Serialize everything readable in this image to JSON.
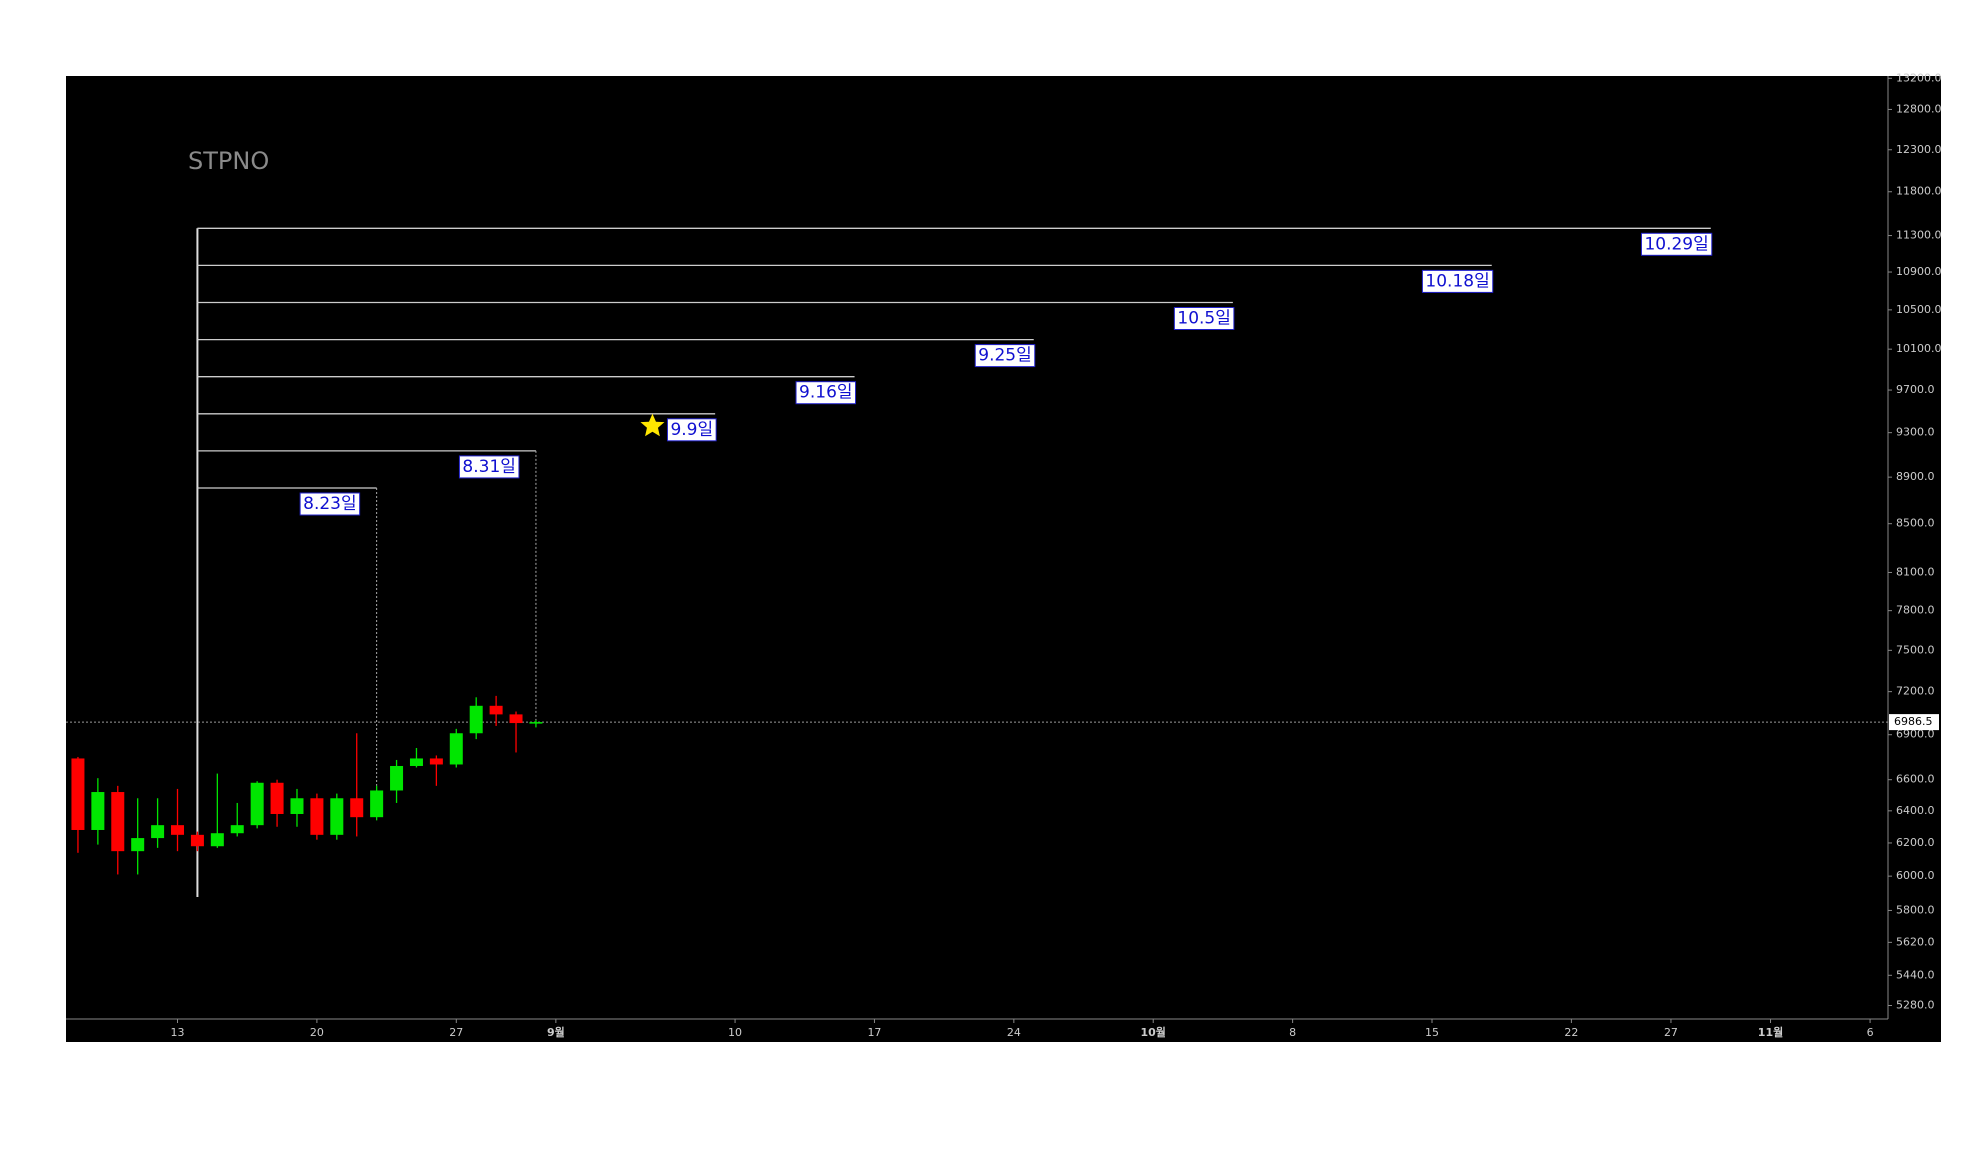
{
  "chart_data": {
    "type": "candlestick",
    "title": "STPNO",
    "log_scale": true,
    "x": [
      -5,
      -4,
      -3,
      -2,
      -1,
      0,
      1,
      2,
      3,
      4,
      5,
      6,
      7,
      8,
      9,
      10,
      11,
      12,
      13,
      14,
      15,
      16,
      17,
      18
    ],
    "open": [
      6740,
      6280,
      6520,
      6150,
      6230,
      6310,
      6250,
      6180,
      6260,
      6310,
      6580,
      6380,
      6480,
      6250,
      6480,
      6360,
      6530,
      6690,
      6740,
      6700,
      6910,
      7100,
      7040,
      6980
    ],
    "high": [
      6750,
      6610,
      6560,
      6480,
      6480,
      6540,
      6270,
      6640,
      6450,
      6590,
      6600,
      6540,
      6510,
      6510,
      6910,
      6560,
      6730,
      6810,
      6760,
      6940,
      7160,
      7170,
      7060,
      7000
    ],
    "low": [
      6140,
      6190,
      6010,
      6010,
      6170,
      6150,
      6150,
      6170,
      6240,
      6290,
      6300,
      6300,
      6220,
      6220,
      6240,
      6340,
      6450,
      6680,
      6560,
      6680,
      6870,
      6960,
      6780,
      6950
    ],
    "close": [
      6280,
      6520,
      6150,
      6230,
      6310,
      6250,
      6180,
      6260,
      6310,
      6580,
      6380,
      6480,
      6250,
      6480,
      6360,
      6530,
      6690,
      6740,
      6700,
      6910,
      7100,
      7040,
      6980,
      6986.5
    ],
    "up_color": "#00e600",
    "down_color": "#ff0000",
    "last_price": 6986.5,
    "annotation_start": 1,
    "annotations": [
      {
        "label": "8.23일",
        "x": 10
      },
      {
        "label": "8.31일",
        "x": 18
      },
      {
        "label": "9.9일",
        "x": 27
      },
      {
        "label": "9.16일",
        "x": 34
      },
      {
        "label": "9.25일",
        "x": 43
      },
      {
        "label": "10.5일",
        "x": 53
      },
      {
        "label": "10.18일",
        "x": 66
      },
      {
        "label": "10.29일",
        "x": 77
      }
    ],
    "xlim": [
      -5.6,
      85.9
    ],
    "xticks": [
      {
        "value": 0,
        "label": "13"
      },
      {
        "value": 7,
        "label": "20"
      },
      {
        "value": 14,
        "label": "27"
      },
      {
        "value": 19,
        "label": "9월"
      },
      {
        "value": 28,
        "label": "10"
      },
      {
        "value": 35,
        "label": "17"
      },
      {
        "value": 42,
        "label": "24"
      },
      {
        "value": 49,
        "label": "10월"
      },
      {
        "value": 56,
        "label": "8"
      },
      {
        "value": 63,
        "label": "15"
      },
      {
        "value": 70,
        "label": "22"
      },
      {
        "value": 75,
        "label": "27"
      },
      {
        "value": 80,
        "label": "11월"
      },
      {
        "value": 85,
        "label": "6"
      }
    ],
    "ylim": [
      5210,
      13230
    ],
    "yticks": [
      {
        "value": 13200,
        "label": "13200.0"
      },
      {
        "value": 12800,
        "label": "12800.0"
      },
      {
        "value": 12300,
        "label": "12300.0"
      },
      {
        "value": 11800,
        "label": "11800.0"
      },
      {
        "value": 11300,
        "label": "11300.0"
      },
      {
        "value": 10900,
        "label": "10900.0"
      },
      {
        "value": 10500,
        "label": "10500.0"
      },
      {
        "value": 10100,
        "label": "10100.0"
      },
      {
        "value": 9700,
        "label": "9700.0"
      },
      {
        "value": 9300,
        "label": "9300.0"
      },
      {
        "value": 8900,
        "label": "8900.0"
      },
      {
        "value": 8500,
        "label": "8500.0"
      },
      {
        "value": 8100,
        "label": "8100.0"
      },
      {
        "value": 7800,
        "label": "7800.0"
      },
      {
        "value": 7500,
        "label": "7500.0"
      },
      {
        "value": 7200,
        "label": "7200.0"
      },
      {
        "value": 6900,
        "label": "6900.0"
      },
      {
        "value": 6600,
        "label": "6600.0"
      },
      {
        "value": 6400,
        "label": "6400.0"
      },
      {
        "value": 6200,
        "label": "6200.0"
      },
      {
        "value": 6000,
        "label": "6000.0"
      },
      {
        "value": 5800,
        "label": "5800.0"
      },
      {
        "value": 5620,
        "label": "5620.0"
      },
      {
        "value": 5440,
        "label": "5440.0"
      },
      {
        "value": 5280,
        "label": "5280.0"
      }
    ]
  }
}
